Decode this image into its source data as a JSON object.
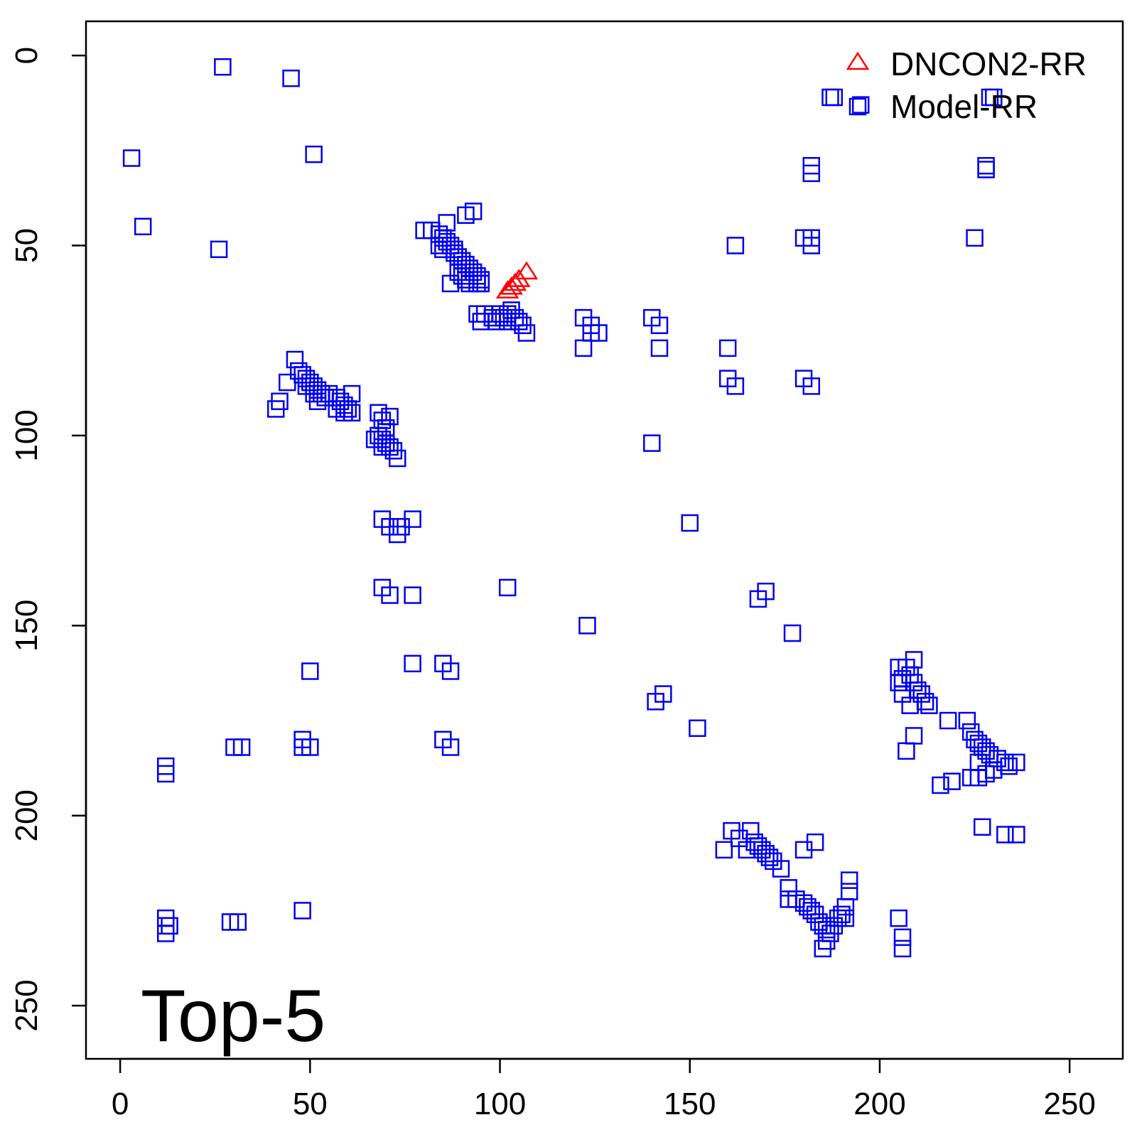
{
  "chart_data": {
    "type": "scatter",
    "title": "",
    "xlabel": "",
    "ylabel": "",
    "xlim": [
      -9,
      264
    ],
    "ylim": [
      -9,
      264
    ],
    "y_reversed": true,
    "x_ticks": [
      0,
      50,
      100,
      150,
      200,
      250
    ],
    "y_ticks": [
      0,
      50,
      100,
      150,
      200,
      250
    ],
    "x_tick_labels": [
      "0",
      "50",
      "100",
      "150",
      "200",
      "250"
    ],
    "y_tick_labels": [
      "0",
      "50",
      "100",
      "150",
      "200",
      "250"
    ],
    "grid": false,
    "legend_position": "top-right",
    "annotation": "Top-5",
    "series": [
      {
        "name": "DNCON2-RR",
        "marker": "triangle",
        "color": "#ff0000",
        "points": [
          [
            102,
            62
          ],
          [
            103,
            61
          ],
          [
            104,
            60
          ],
          [
            105,
            59
          ],
          [
            107,
            57
          ]
        ]
      },
      {
        "name": "Model-RR",
        "marker": "square",
        "color": "#0000ee",
        "points": [
          [
            27,
            3
          ],
          [
            45,
            6
          ],
          [
            3,
            27
          ],
          [
            51,
            26
          ],
          [
            6,
            45
          ],
          [
            26,
            51
          ],
          [
            188,
            11
          ],
          [
            187,
            11
          ],
          [
            195,
            13
          ],
          [
            229,
            11
          ],
          [
            230,
            11
          ],
          [
            182,
            29
          ],
          [
            182,
            31
          ],
          [
            228,
            29
          ],
          [
            228,
            30
          ],
          [
            180,
            48
          ],
          [
            182,
            48
          ],
          [
            182,
            50
          ],
          [
            162,
            50
          ],
          [
            225,
            48
          ],
          [
            93,
            41
          ],
          [
            91,
            42
          ],
          [
            86,
            44
          ],
          [
            80,
            46
          ],
          [
            82,
            46
          ],
          [
            84,
            47
          ],
          [
            85,
            48
          ],
          [
            86,
            49
          ],
          [
            87,
            50
          ],
          [
            88,
            51
          ],
          [
            84,
            50
          ],
          [
            85,
            51
          ],
          [
            88,
            52
          ],
          [
            89,
            53
          ],
          [
            90,
            54
          ],
          [
            91,
            55
          ],
          [
            92,
            56
          ],
          [
            93,
            57
          ],
          [
            94,
            58
          ],
          [
            95,
            59
          ],
          [
            89,
            57
          ],
          [
            90,
            58
          ],
          [
            91,
            59
          ],
          [
            92,
            60
          ],
          [
            94,
            60
          ],
          [
            95,
            60
          ],
          [
            87,
            60
          ],
          [
            94,
            68
          ],
          [
            96,
            68
          ],
          [
            95,
            70
          ],
          [
            98,
            69
          ],
          [
            99,
            70
          ],
          [
            100,
            68
          ],
          [
            101,
            69
          ],
          [
            102,
            68
          ],
          [
            103,
            67
          ],
          [
            104,
            69
          ],
          [
            105,
            70
          ],
          [
            106,
            71
          ],
          [
            107,
            73
          ],
          [
            102,
            70
          ],
          [
            122,
            69
          ],
          [
            124,
            71
          ],
          [
            126,
            73
          ],
          [
            122,
            77
          ],
          [
            124,
            73
          ],
          [
            140,
            69
          ],
          [
            142,
            71
          ],
          [
            142,
            77
          ],
          [
            160,
            77
          ],
          [
            160,
            85
          ],
          [
            162,
            87
          ],
          [
            180,
            85
          ],
          [
            182,
            87
          ],
          [
            140,
            102
          ],
          [
            46,
            80
          ],
          [
            47,
            83
          ],
          [
            48,
            84
          ],
          [
            49,
            85
          ],
          [
            50,
            86
          ],
          [
            51,
            87
          ],
          [
            52,
            88
          ],
          [
            53,
            89
          ],
          [
            54,
            90
          ],
          [
            44,
            86
          ],
          [
            42,
            91
          ],
          [
            41,
            93
          ],
          [
            49,
            87
          ],
          [
            51,
            89
          ],
          [
            55,
            89
          ],
          [
            57,
            90
          ],
          [
            58,
            91
          ],
          [
            59,
            92
          ],
          [
            60,
            93
          ],
          [
            61,
            94
          ],
          [
            61,
            89
          ],
          [
            59,
            94
          ],
          [
            57,
            93
          ],
          [
            52,
            91
          ],
          [
            68,
            94
          ],
          [
            69,
            96
          ],
          [
            70,
            98
          ],
          [
            68,
            100
          ],
          [
            69,
            101
          ],
          [
            70,
            102
          ],
          [
            71,
            103
          ],
          [
            72,
            104
          ],
          [
            73,
            106
          ],
          [
            67,
            101
          ],
          [
            69,
            103
          ],
          [
            71,
            95
          ],
          [
            70,
            99
          ],
          [
            69,
            122
          ],
          [
            71,
            124
          ],
          [
            73,
            124
          ],
          [
            74,
            124
          ],
          [
            73,
            126
          ],
          [
            77,
            122
          ],
          [
            150,
            123
          ],
          [
            102,
            140
          ],
          [
            69,
            140
          ],
          [
            71,
            142
          ],
          [
            77,
            142
          ],
          [
            170,
            141
          ],
          [
            168,
            143
          ],
          [
            123,
            150
          ],
          [
            177,
            152
          ],
          [
            77,
            160
          ],
          [
            85,
            160
          ],
          [
            87,
            162
          ],
          [
            50,
            162
          ],
          [
            143,
            168
          ],
          [
            141,
            170
          ],
          [
            152,
            177
          ],
          [
            209,
            159
          ],
          [
            207,
            161
          ],
          [
            205,
            161
          ],
          [
            208,
            163
          ],
          [
            206,
            164
          ],
          [
            209,
            165
          ],
          [
            210,
            167
          ],
          [
            211,
            168
          ],
          [
            212,
            170
          ],
          [
            213,
            171
          ],
          [
            208,
            171
          ],
          [
            206,
            168
          ],
          [
            205,
            165
          ],
          [
            218,
            175
          ],
          [
            223,
            175
          ],
          [
            224,
            178
          ],
          [
            225,
            180
          ],
          [
            226,
            181
          ],
          [
            227,
            182
          ],
          [
            228,
            183
          ],
          [
            229,
            184
          ],
          [
            231,
            185
          ],
          [
            233,
            186
          ],
          [
            236,
            186
          ],
          [
            234,
            187
          ],
          [
            230,
            188
          ],
          [
            228,
            189
          ],
          [
            226,
            190
          ],
          [
            224,
            190
          ],
          [
            219,
            191
          ],
          [
            216,
            192
          ],
          [
            209,
            179
          ],
          [
            207,
            183
          ],
          [
            226,
            186
          ],
          [
            12,
            187
          ],
          [
            12,
            189
          ],
          [
            30,
            182
          ],
          [
            32,
            182
          ],
          [
            48,
            180
          ],
          [
            50,
            182
          ],
          [
            48,
            182
          ],
          [
            85,
            180
          ],
          [
            87,
            182
          ],
          [
            227,
            203
          ],
          [
            233,
            205
          ],
          [
            236,
            205
          ],
          [
            161,
            204
          ],
          [
            166,
            204
          ],
          [
            163,
            206
          ],
          [
            167,
            207
          ],
          [
            168,
            208
          ],
          [
            169,
            209
          ],
          [
            170,
            210
          ],
          [
            171,
            211
          ],
          [
            172,
            212
          ],
          [
            174,
            214
          ],
          [
            183,
            207
          ],
          [
            180,
            209
          ],
          [
            159,
            209
          ],
          [
            165,
            209
          ],
          [
            176,
            219
          ],
          [
            176,
            222
          ],
          [
            178,
            222
          ],
          [
            180,
            223
          ],
          [
            181,
            224
          ],
          [
            182,
            225
          ],
          [
            183,
            226
          ],
          [
            184,
            228
          ],
          [
            185,
            229
          ],
          [
            186,
            230
          ],
          [
            187,
            231
          ],
          [
            188,
            229
          ],
          [
            189,
            227
          ],
          [
            190,
            226
          ],
          [
            191,
            224
          ],
          [
            192,
            220
          ],
          [
            192,
            217
          ],
          [
            186,
            233
          ],
          [
            185,
            235
          ],
          [
            191,
            227
          ],
          [
            205,
            227
          ],
          [
            206,
            232
          ],
          [
            206,
            235
          ],
          [
            12,
            227
          ],
          [
            12,
            229
          ],
          [
            13,
            229
          ],
          [
            12,
            231
          ],
          [
            29,
            228
          ],
          [
            31,
            228
          ],
          [
            48,
            225
          ]
        ]
      }
    ]
  }
}
